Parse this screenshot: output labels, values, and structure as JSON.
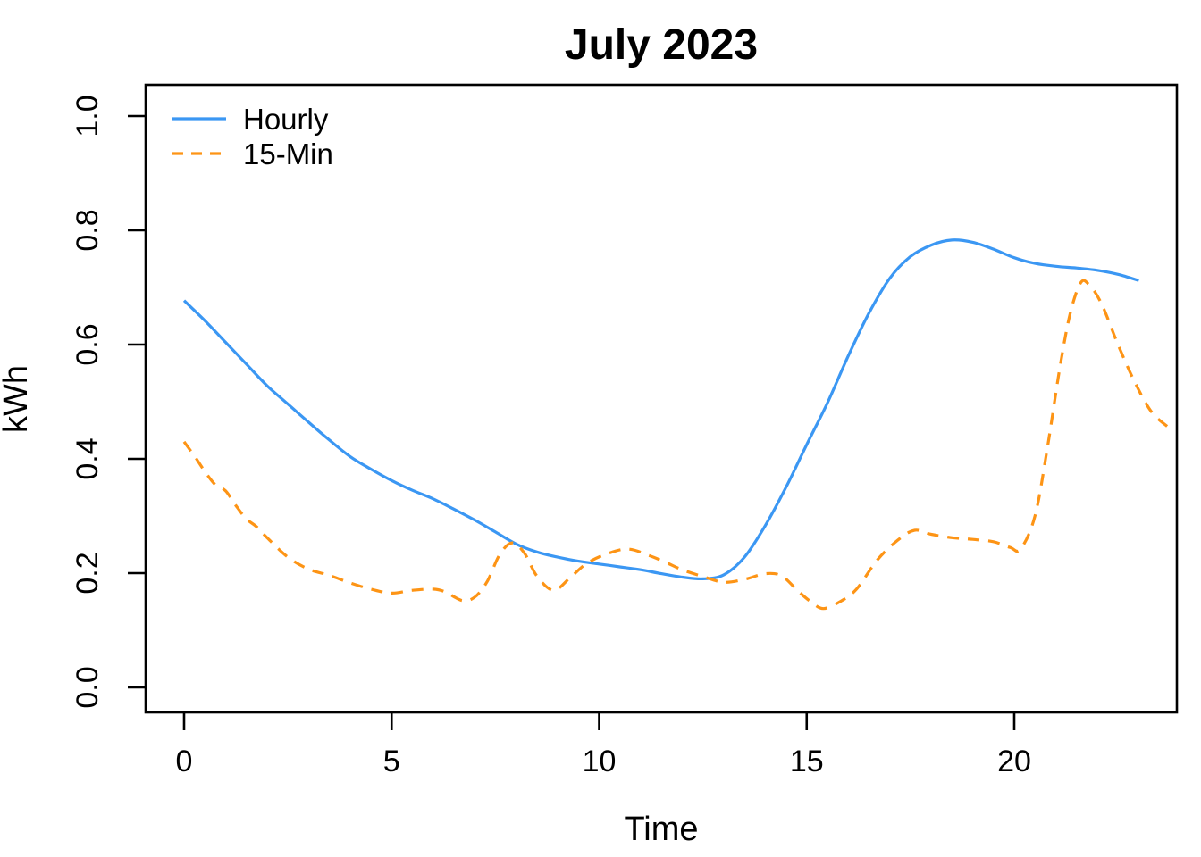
{
  "page": {
    "background": "#ffffff"
  },
  "chart_data": {
    "type": "line",
    "title": "July 2023",
    "xlabel": "Time",
    "ylabel": "kWh",
    "grid": false,
    "x_axis": {
      "ticks": [
        0,
        5,
        10,
        15,
        20
      ],
      "tick_labels": [
        "0",
        "5",
        "10",
        "15",
        "20"
      ],
      "range": [
        -0.93,
        23.92
      ]
    },
    "y_axis": {
      "ticks": [
        0.0,
        0.2,
        0.4,
        0.6,
        0.8,
        1.0
      ],
      "tick_labels": [
        "0.0",
        "0.2",
        "0.4",
        "0.6",
        "0.8",
        "1.0"
      ],
      "range": [
        -0.044,
        1.055
      ]
    },
    "legend": {
      "position": "top-left",
      "entries": [
        {
          "label": "Hourly",
          "color": "#3B97F3",
          "line": "solid"
        },
        {
          "label": "15-Min",
          "color": "#FD9415",
          "line": "dashed"
        }
      ]
    },
    "series": [
      {
        "name": "Hourly",
        "color": "#3B97F3",
        "style": "solid",
        "x": [
          0,
          0.5,
          1,
          1.5,
          2,
          2.5,
          3,
          3.5,
          4,
          4.5,
          5,
          5.5,
          6,
          6.5,
          7,
          7.5,
          8,
          8.5,
          9,
          9.5,
          10,
          10.5,
          11,
          11.5,
          12,
          12.5,
          13,
          13.5,
          14,
          14.5,
          15,
          15.5,
          16,
          16.5,
          17,
          17.5,
          18,
          18.5,
          19,
          19.5,
          20,
          20.5,
          21,
          21.5,
          22,
          22.5,
          23
        ],
        "y": [
          0.677,
          0.642,
          0.604,
          0.566,
          0.528,
          0.496,
          0.464,
          0.433,
          0.404,
          0.382,
          0.362,
          0.345,
          0.33,
          0.312,
          0.293,
          0.272,
          0.251,
          0.237,
          0.228,
          0.221,
          0.216,
          0.211,
          0.206,
          0.199,
          0.193,
          0.19,
          0.197,
          0.228,
          0.283,
          0.35,
          0.425,
          0.498,
          0.58,
          0.655,
          0.716,
          0.754,
          0.774,
          0.783,
          0.779,
          0.767,
          0.752,
          0.742,
          0.737,
          0.734,
          0.73,
          0.723,
          0.712
        ]
      },
      {
        "name": "15-Min",
        "color": "#FD9415",
        "style": "dashed",
        "x": [
          0,
          0.25,
          0.5,
          0.75,
          1,
          1.25,
          1.5,
          1.75,
          2,
          2.5,
          3,
          3.5,
          4,
          4.5,
          5,
          5.5,
          6,
          6.3,
          6.7,
          7,
          7.3,
          7.6,
          7.9,
          8.2,
          8.5,
          8.9,
          9.3,
          9.7,
          10.2,
          10.7,
          11.2,
          11.6,
          12,
          12.5,
          13,
          13.5,
          14,
          14.4,
          14.8,
          15.1,
          15.4,
          15.8,
          16.2,
          16.7,
          17.2,
          17.6,
          18,
          18.5,
          19,
          19.5,
          19.9,
          20.15,
          20.5,
          20.8,
          21.1,
          21.35,
          21.6,
          21.8,
          22.1,
          22.5,
          22.9,
          23.3,
          23.7
        ],
        "y": [
          0.43,
          0.405,
          0.378,
          0.355,
          0.344,
          0.318,
          0.295,
          0.281,
          0.262,
          0.228,
          0.207,
          0.196,
          0.183,
          0.172,
          0.165,
          0.17,
          0.172,
          0.167,
          0.152,
          0.158,
          0.185,
          0.232,
          0.253,
          0.235,
          0.195,
          0.17,
          0.192,
          0.217,
          0.234,
          0.242,
          0.231,
          0.219,
          0.206,
          0.194,
          0.184,
          0.189,
          0.199,
          0.195,
          0.168,
          0.15,
          0.138,
          0.15,
          0.172,
          0.223,
          0.258,
          0.275,
          0.268,
          0.262,
          0.259,
          0.255,
          0.245,
          0.242,
          0.3,
          0.42,
          0.56,
          0.655,
          0.708,
          0.705,
          0.672,
          0.6,
          0.535,
          0.483,
          0.456
        ]
      }
    ]
  }
}
